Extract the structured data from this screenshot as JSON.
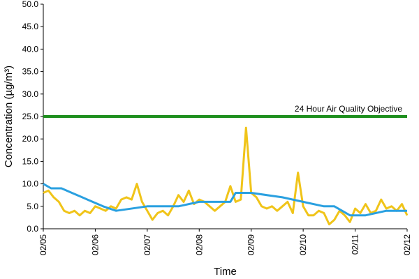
{
  "chart_data": {
    "type": "line",
    "xlabel": "Time",
    "ylabel": "Concentration (µg/m³)",
    "ylim": [
      0,
      50
    ],
    "y_ticks": [
      "0.0",
      "5.0",
      "10.0",
      "15.0",
      "20.0",
      "25.0",
      "30.0",
      "35.0",
      "40.0",
      "45.0",
      "50.0"
    ],
    "x_ticks": [
      "02/05",
      "02/06",
      "02/07",
      "02/08",
      "02/09",
      "02/10",
      "02/11",
      "02/12"
    ],
    "xlim": [
      0,
      7
    ],
    "grid": false,
    "legend": "none",
    "objective": {
      "label": "24 Hour Air Quality Objective",
      "value": 25,
      "color": "#1e8f1e"
    },
    "series": [
      {
        "color": "#f0c419",
        "x": [
          0,
          0.1,
          0.2,
          0.3,
          0.4,
          0.5,
          0.6,
          0.7,
          0.8,
          0.9,
          1.0,
          1.1,
          1.2,
          1.3,
          1.4,
          1.5,
          1.6,
          1.7,
          1.8,
          1.9,
          2.0,
          2.1,
          2.2,
          2.3,
          2.4,
          2.5,
          2.6,
          2.7,
          2.8,
          2.9,
          3.0,
          3.1,
          3.2,
          3.3,
          3.4,
          3.5,
          3.6,
          3.7,
          3.8,
          3.9,
          4.0,
          4.1,
          4.2,
          4.3,
          4.4,
          4.5,
          4.6,
          4.7,
          4.8,
          4.9,
          5.0,
          5.1,
          5.2,
          5.3,
          5.4,
          5.5,
          5.6,
          5.7,
          5.8,
          5.9,
          6.0,
          6.1,
          6.2,
          6.3,
          6.4,
          6.5,
          6.6,
          6.7,
          6.8,
          6.9,
          7.0
        ],
        "values": [
          8,
          8.5,
          7,
          6,
          4,
          3.5,
          4,
          3,
          4,
          3.5,
          5,
          4.5,
          4,
          5,
          4.5,
          6.5,
          7,
          6.5,
          10,
          6,
          4,
          2,
          3.5,
          4,
          3,
          5,
          7.5,
          6,
          8.5,
          5.5,
          6.5,
          6,
          5,
          4,
          5,
          6,
          9.5,
          6,
          6.5,
          22.5,
          8,
          7,
          5,
          4.5,
          5,
          4,
          5,
          6,
          3.5,
          12.5,
          5,
          3,
          3,
          4,
          3.5,
          1,
          2,
          4,
          3,
          1.5,
          4.5,
          3.5,
          5.5,
          3.5,
          4,
          6.5,
          4.5,
          5,
          4,
          5.5,
          3
        ]
      },
      {
        "color": "#2aa0e0",
        "x": [
          0,
          0.15,
          0.35,
          0.55,
          0.75,
          0.95,
          1.15,
          1.4,
          2.0,
          2.6,
          3.0,
          3.6,
          3.7,
          4.0,
          4.6,
          5.0,
          5.4,
          5.6,
          5.9,
          6.2,
          6.6,
          7.0
        ],
        "values": [
          10,
          9,
          9,
          8,
          7,
          6,
          5,
          4,
          5,
          5,
          6,
          6,
          8,
          8,
          7,
          6,
          5,
          5,
          3,
          3,
          4,
          4
        ]
      }
    ]
  }
}
